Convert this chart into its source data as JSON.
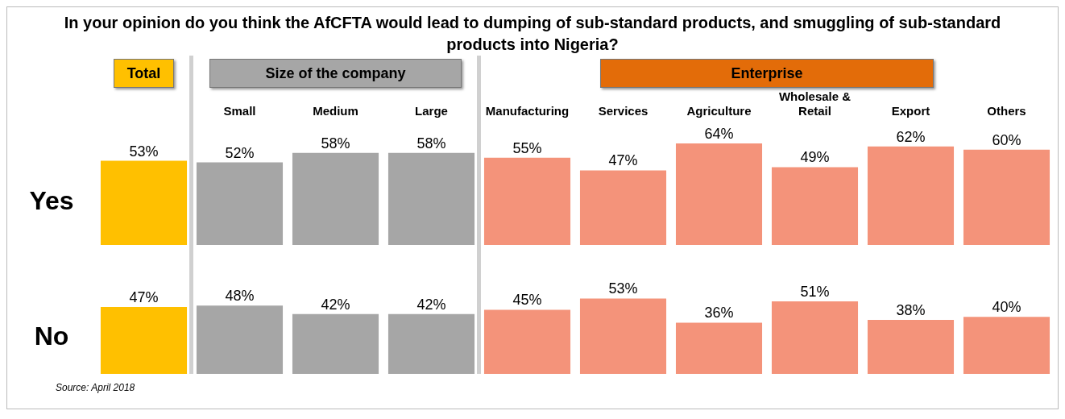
{
  "chart_data": [
    {
      "type": "bar",
      "title": "In your opinion do you think the AfCFTA would lead to dumping of sub-standard products, and smuggling of sub-standard products into Nigeria?",
      "categories": [
        null,
        "Small",
        "Medium",
        "Large",
        "Manufacturing",
        "Services",
        "Agriculture",
        "Wholesale & Retail",
        "Export",
        "Others"
      ],
      "series": [
        {
          "name": "Yes",
          "colors": [
            "#ffc000",
            "#a6a6a6",
            "#a6a6a6",
            "#a6a6a6",
            "#f4937a",
            "#f4937a",
            "#f4937a",
            "#f4937a",
            "#f4937a",
            "#f4937a"
          ],
          "values": [
            53,
            52,
            58,
            58,
            55,
            47,
            64,
            49,
            62,
            60
          ],
          "value_labels": [
            "53%",
            "52%",
            "58%",
            "58%",
            "55%",
            "47%",
            "64%",
            "49%",
            "62%",
            "60%"
          ]
        }
      ],
      "annotations": [
        "Total",
        "Size of the company",
        "Enterprise"
      ],
      "legend": false
    },
    {
      "type": "bar",
      "categories": [
        null,
        null,
        null,
        null,
        null,
        null,
        null,
        null,
        null,
        null
      ],
      "tick_labels": false,
      "series": [
        {
          "name": "No",
          "colors": [
            "#ffc000",
            "#a6a6a6",
            "#a6a6a6",
            "#a6a6a6",
            "#f4937a",
            "#f4937a",
            "#f4937a",
            "#f4937a",
            "#f4937a",
            "#f4937a"
          ],
          "values": [
            47,
            48,
            42,
            42,
            45,
            53,
            36,
            51,
            38,
            40
          ],
          "value_labels": [
            "47%",
            "48%",
            "42%",
            "42%",
            "45%",
            "53%",
            "36%",
            "51%",
            "38%",
            "40%"
          ]
        }
      ],
      "annotations": [
        "Source: April 2018"
      ],
      "legend": false
    }
  ]
}
